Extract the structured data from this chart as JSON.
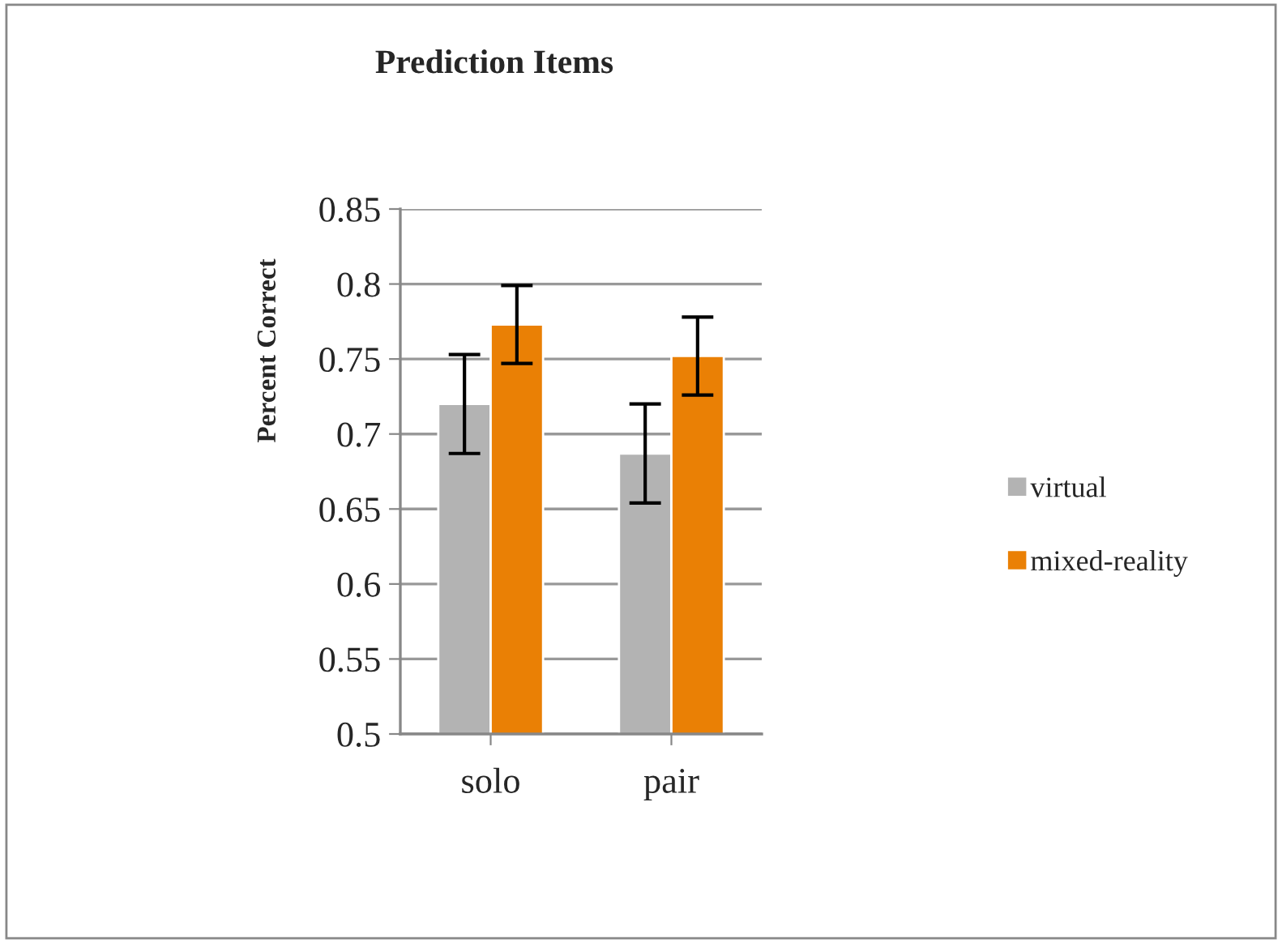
{
  "chart_data": {
    "type": "bar",
    "title": "Prediction Items",
    "ylabel": "Percent Correct",
    "categories": [
      "solo",
      "pair"
    ],
    "series": [
      {
        "name": "virtual",
        "color": "#b3b3b3",
        "values": [
          0.72,
          0.687
        ],
        "errors": [
          0.033,
          0.033
        ]
      },
      {
        "name": "mixed-reality",
        "color": "#ea8005",
        "values": [
          0.773,
          0.752
        ],
        "errors": [
          0.026,
          0.026
        ]
      }
    ],
    "ylim": [
      0.5,
      0.85
    ],
    "yticks": [
      0.5,
      0.55,
      0.6,
      0.65,
      0.7,
      0.75,
      0.8,
      0.85
    ],
    "grid": "y",
    "legend": "right"
  }
}
